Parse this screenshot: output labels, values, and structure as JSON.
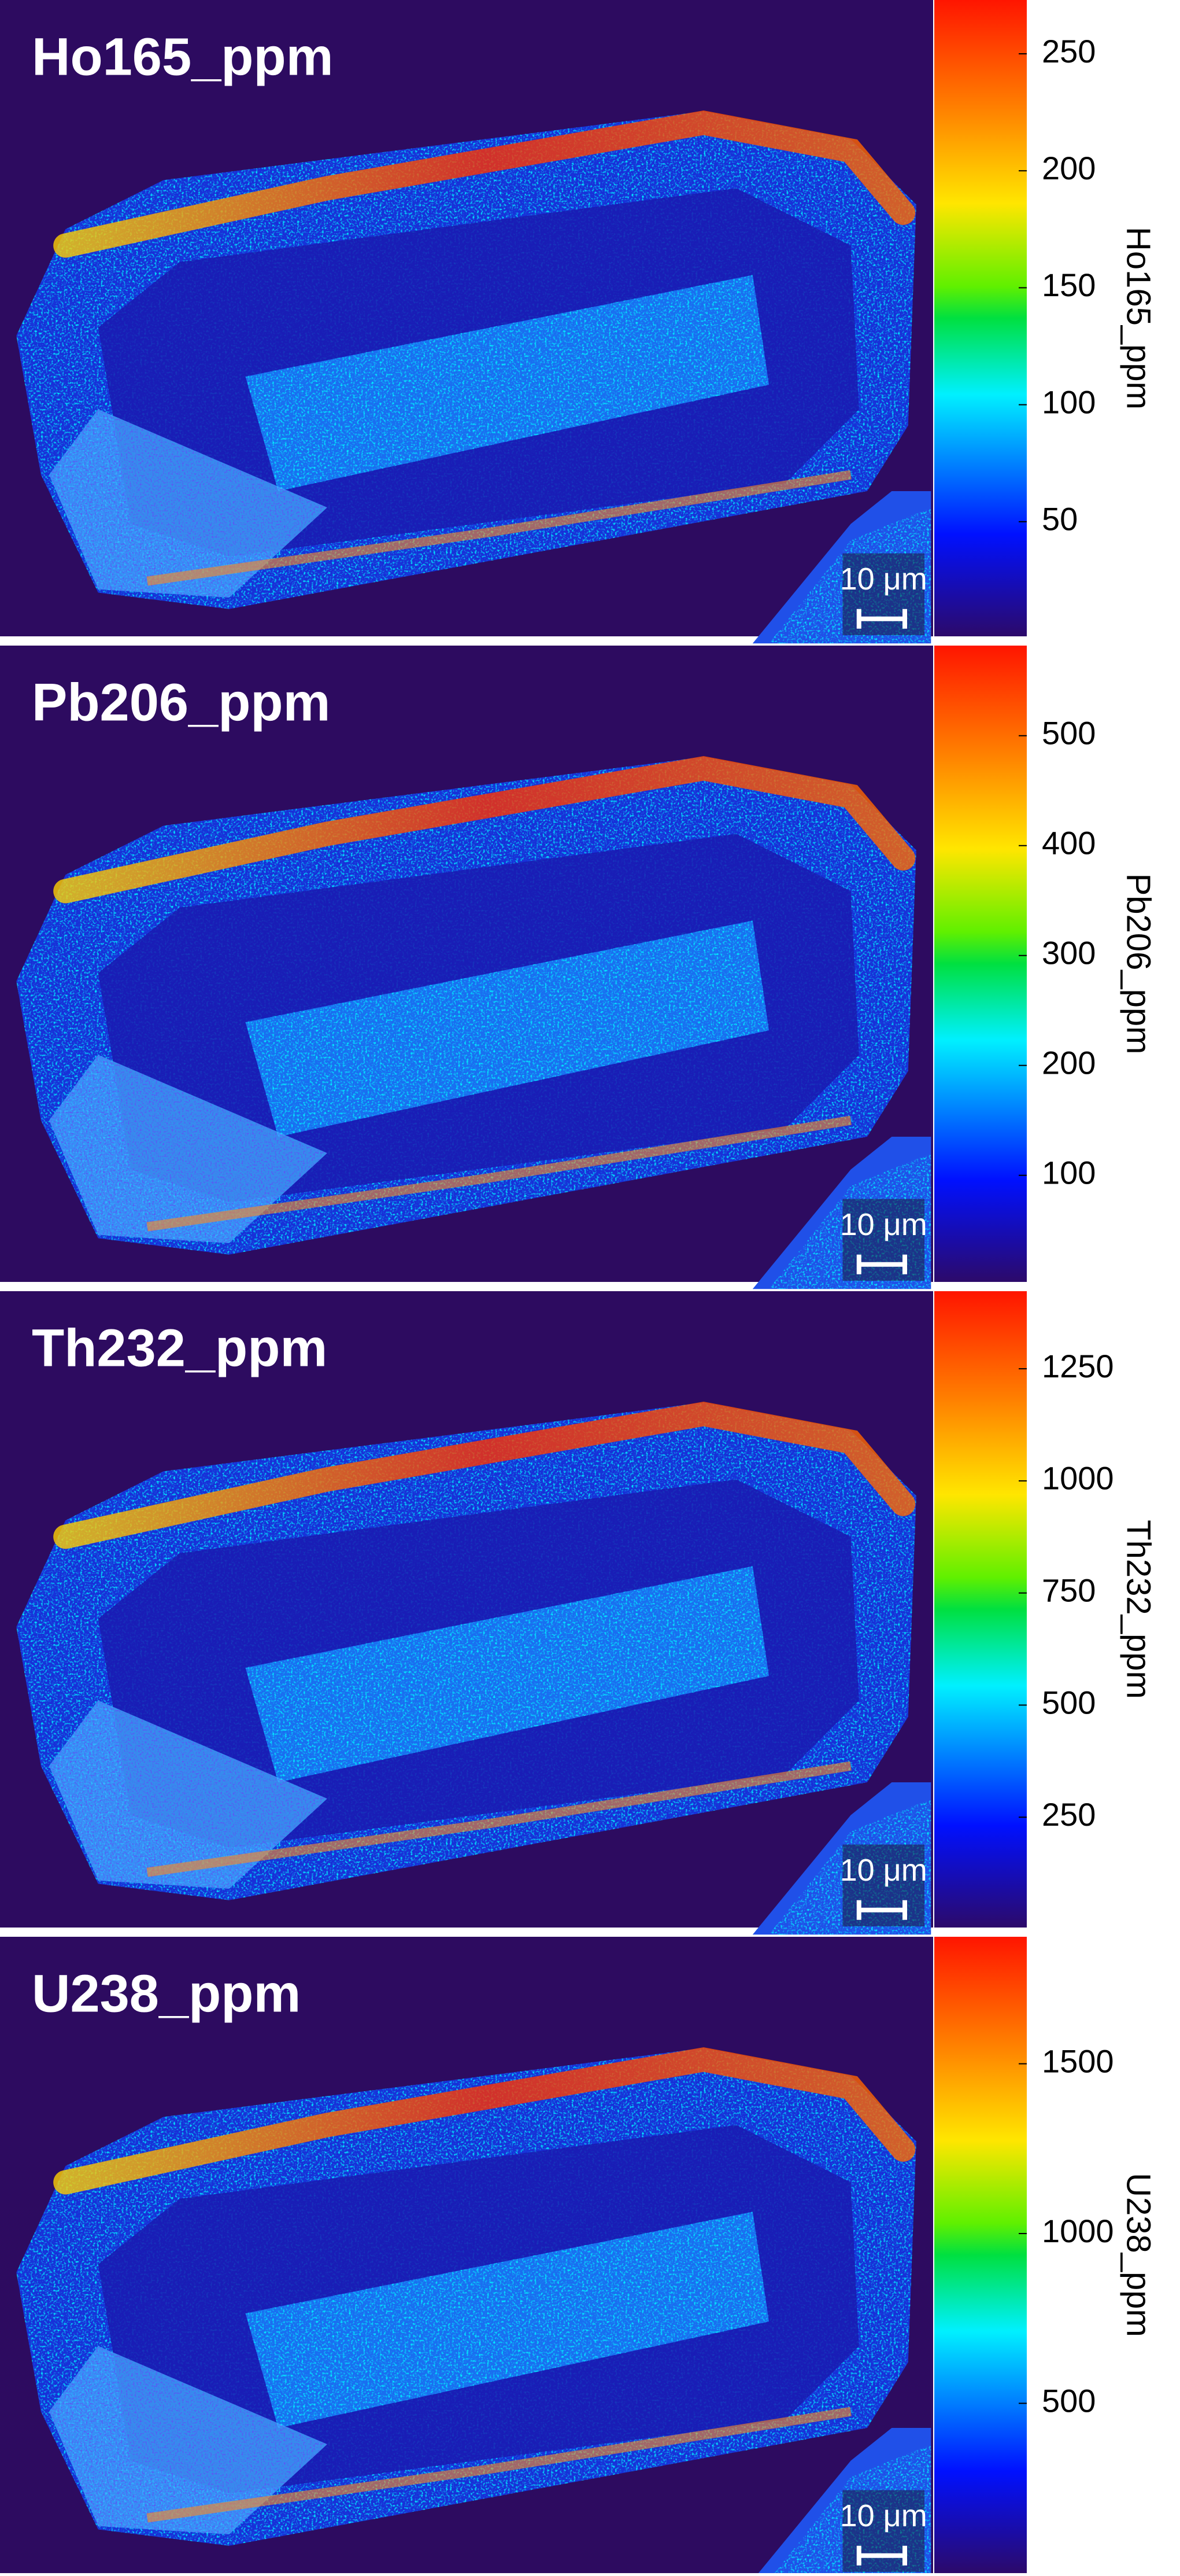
{
  "chart_data": [
    {
      "type": "heatmap",
      "title": "Ho165_ppm",
      "colorbar_label": "Ho165_ppm",
      "zlim": [
        1,
        273
      ],
      "zticks": [
        50,
        100,
        150,
        200,
        250
      ],
      "scale_bar_label": "10 μm"
    },
    {
      "type": "heatmap",
      "title": "Pb206_ppm",
      "colorbar_label": "Pb206_ppm",
      "zlim": [
        3,
        582
      ],
      "zticks": [
        100,
        200,
        300,
        400,
        500
      ],
      "scale_bar_label": "10 μm"
    },
    {
      "type": "heatmap",
      "title": "Th232_ppm",
      "colorbar_label": "Th232_ppm",
      "zlim": [
        4,
        1423
      ],
      "zticks": [
        250,
        500,
        750,
        1000,
        1250
      ],
      "scale_bar_label": "10 μm"
    },
    {
      "type": "heatmap",
      "title": "U238_ppm",
      "colorbar_label": "U238_ppm",
      "zlim": [
        0,
        1874
      ],
      "zticks": [
        500,
        1000,
        1500
      ],
      "scale_bar_label": "10 μm"
    }
  ]
}
